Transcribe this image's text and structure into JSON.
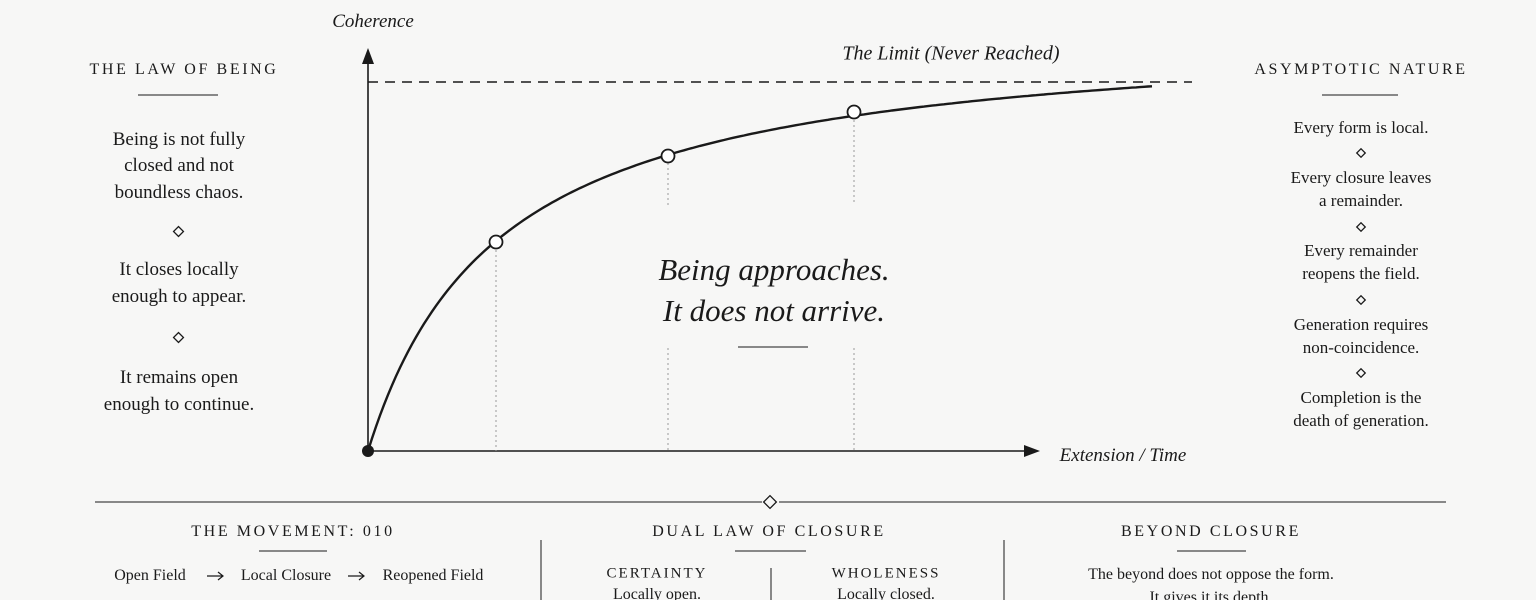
{
  "left": {
    "title": "THE LAW OF BEING",
    "paragraphs": [
      [
        "Being is not fully",
        "closed and not",
        "boundless chaos."
      ],
      [
        "It closes locally",
        "enough to appear."
      ],
      [
        "It remains open",
        "enough to continue."
      ]
    ]
  },
  "graph": {
    "y_label": "Coherence",
    "x_label": "Extension / Time",
    "limit_label": "The Limit (Never Reached)",
    "center_text": [
      "Being approaches.",
      "It does not arrive."
    ]
  },
  "right": {
    "title": "ASYMPTOTIC NATURE",
    "items": [
      [
        "Every form is local."
      ],
      [
        "Every closure leaves",
        "a remainder."
      ],
      [
        "Every remainder",
        "reopens the field."
      ],
      [
        "Generation requires",
        "non-coincidence."
      ],
      [
        "Completion is the",
        "death of generation."
      ]
    ]
  },
  "bottom": {
    "movement": {
      "title": "THE MOVEMENT: 010",
      "sequence": [
        "Open Field",
        "Local Closure",
        "Reopened Field"
      ]
    },
    "dual": {
      "title": "DUAL LAW OF CLOSURE",
      "columns": [
        {
          "title": "CERTAINTY",
          "text": "Locally open."
        },
        {
          "title": "WHOLENESS",
          "text": "Locally closed."
        }
      ]
    },
    "beyond": {
      "title": "BEYOND CLOSURE",
      "lines": [
        "The beyond does not oppose the form.",
        "It gives it its depth."
      ]
    }
  }
}
